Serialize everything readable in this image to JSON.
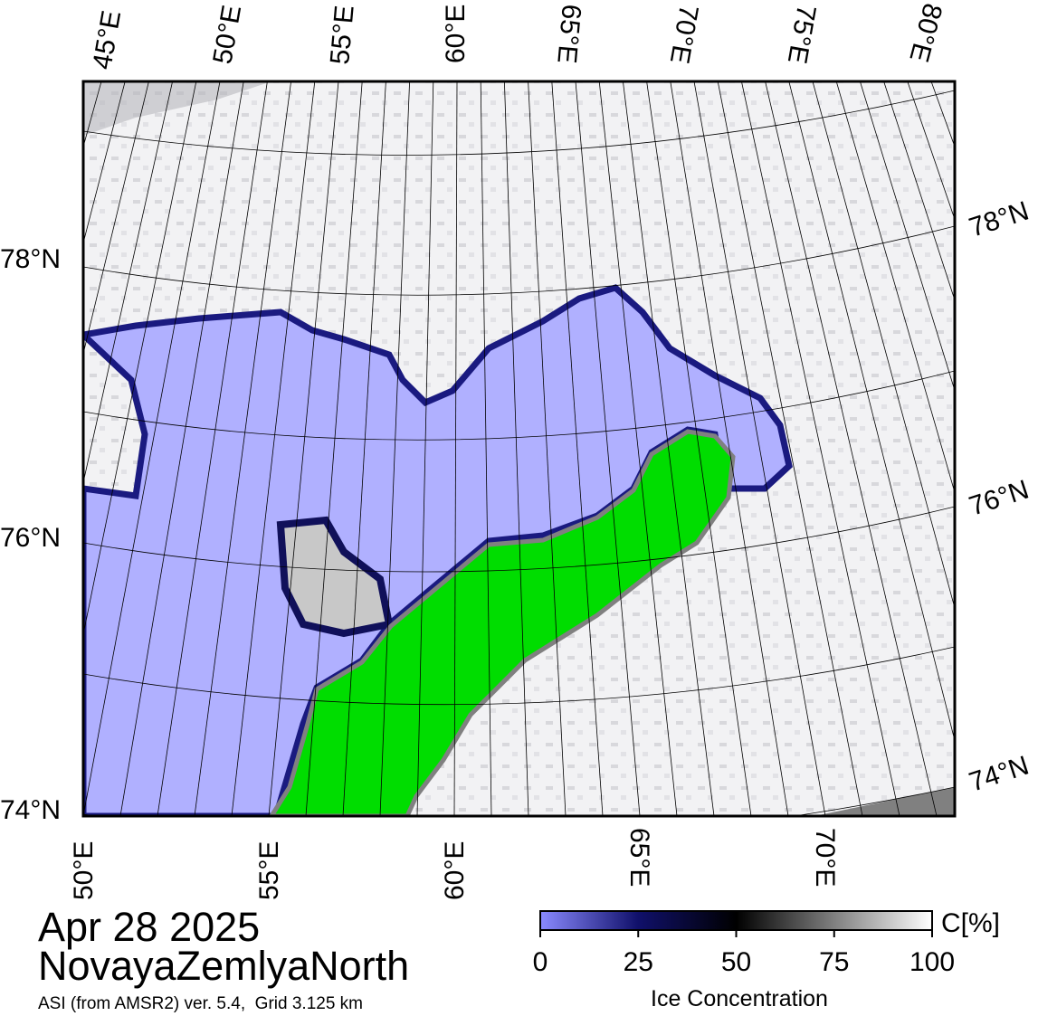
{
  "header": {
    "date": "Apr 28 2025",
    "region": "NovayaZemlyaNorth",
    "source": "ASI (from AMSR2) ver. 5.4,  Grid 3.125 km"
  },
  "map": {
    "top_labels": [
      "45°E",
      "50°E",
      "55°E",
      "60°E",
      "65°E",
      "70°E",
      "75°E",
      "80°E"
    ],
    "bottom_labels": [
      "50°E",
      "55°E",
      "60°E",
      "65°E",
      "70°E"
    ],
    "left_labels": [
      "78°N",
      "76°N",
      "74°N"
    ],
    "right_labels": [
      "78°N",
      "76°N",
      "74°N"
    ]
  },
  "colorbar": {
    "unit": "C[%]",
    "label": "Ice Concentration",
    "range": [
      0,
      100
    ],
    "ticks": [
      0,
      25,
      50,
      75,
      100
    ]
  }
}
